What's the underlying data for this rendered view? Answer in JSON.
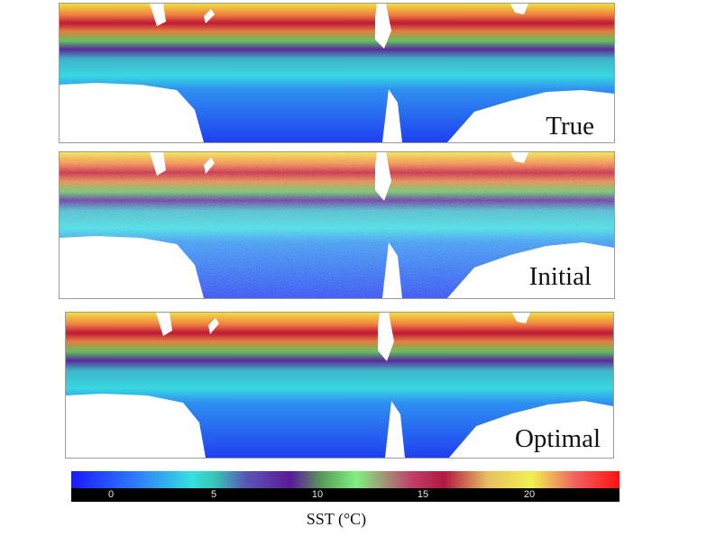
{
  "panels": [
    {
      "label": "True"
    },
    {
      "label": "Initial"
    },
    {
      "label": "Optimal"
    }
  ],
  "colorbar": {
    "ticks": [
      "0",
      "5",
      "10",
      "15",
      "20"
    ],
    "title": "SST (°C)"
  }
}
